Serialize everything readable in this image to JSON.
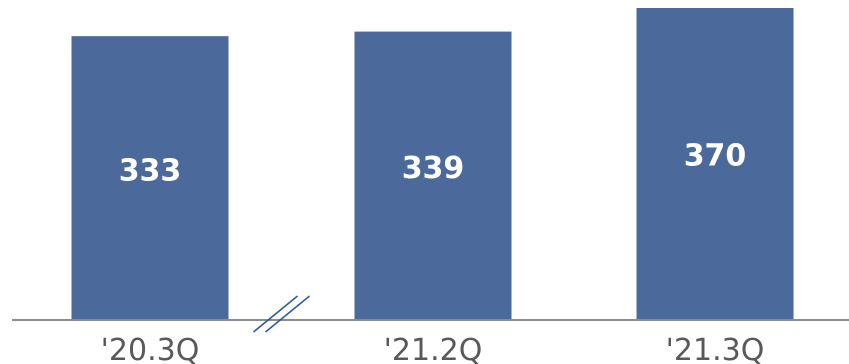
{
  "chart_data": {
    "type": "bar",
    "categories": [
      "'20.3Q",
      "'21.2Q",
      "'21.3Q"
    ],
    "values": [
      333,
      339,
      370
    ],
    "title": "",
    "xlabel": "",
    "ylabel": "",
    "axis_break_between": [
      "'20.3Q",
      "'21.2Q"
    ],
    "colors": {
      "bar": "#4b6a9b",
      "axis": "#8c8c8c",
      "break_mark": "#2e5c9e",
      "label_text": "#ffffff",
      "tick_text": "#595959"
    }
  }
}
